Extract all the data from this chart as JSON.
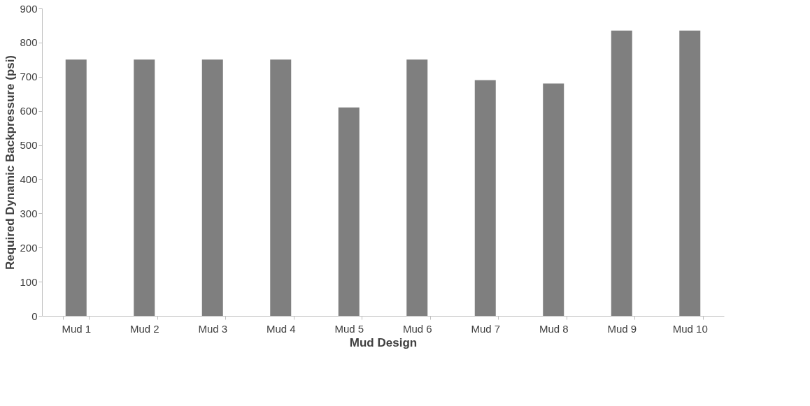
{
  "chart_data": {
    "type": "bar",
    "xlabel": "Mud Design",
    "ylabel": "Required Dynamic Backpressure (psi)",
    "categories": [
      "Mud 1",
      "Mud 2",
      "Mud 3",
      "Mud 4",
      "Mud 5",
      "Mud 6",
      "Mud 7",
      "Mud 8",
      "Mud 9",
      "Mud 10"
    ],
    "values": [
      750,
      750,
      750,
      750,
      610,
      750,
      690,
      680,
      835,
      835
    ],
    "color": "#7f7f7f",
    "ylim": [
      0,
      900
    ],
    "yticks": [
      0,
      100,
      200,
      300,
      400,
      500,
      600,
      700,
      800,
      900
    ],
    "grid": false
  }
}
